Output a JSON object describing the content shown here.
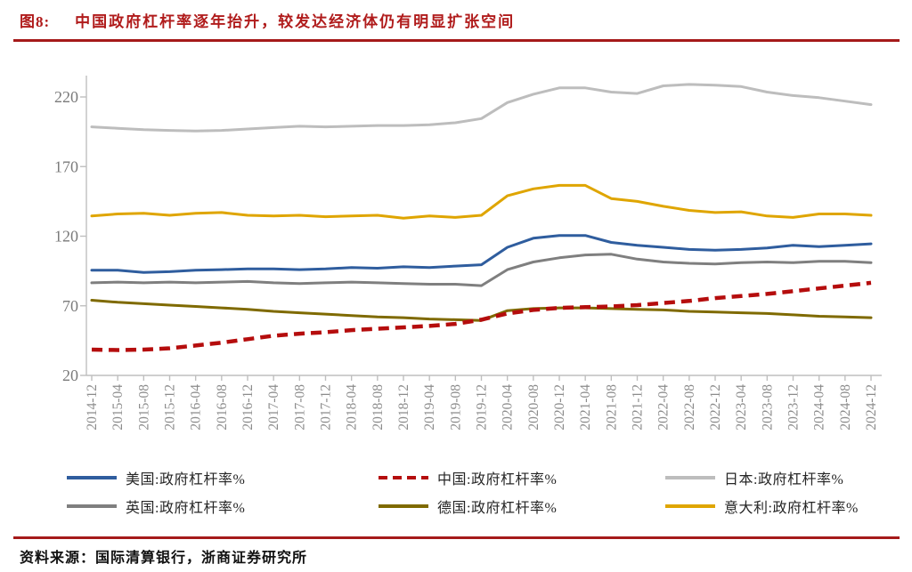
{
  "figure": {
    "label": "图8:",
    "title": "中国政府杠杆率逐年抬升，较发达经济体仍有明显扩张空间",
    "source_label": "资料来源：",
    "source": "国际清算银行，浙商证券研究所",
    "title_color": "#B01B1B",
    "rule_color": "#A51A1A"
  },
  "chart_data": {
    "type": "line",
    "title": "",
    "xlabel": "",
    "ylabel": "政府杠杆率 %",
    "ylim": [
      20,
      220
    ],
    "yticks": [
      20,
      70,
      120,
      170,
      220
    ],
    "grid": false,
    "legend_position": "bottom",
    "x": [
      "2014-12",
      "2015-04",
      "2015-08",
      "2015-12",
      "2016-04",
      "2016-08",
      "2016-12",
      "2017-04",
      "2017-08",
      "2017-12",
      "2018-04",
      "2018-08",
      "2018-12",
      "2019-04",
      "2019-08",
      "2019-12",
      "2020-04",
      "2020-08",
      "2020-12",
      "2021-04",
      "2021-08",
      "2021-12",
      "2022-04",
      "2022-08",
      "2022-12",
      "2023-04",
      "2023-08",
      "2023-12",
      "2024-04",
      "2024-08",
      "2024-12"
    ],
    "series": [
      {
        "name": "美国:政府杠杆率%",
        "color": "#2F5D9E",
        "dashed": false,
        "values": [
          95.5,
          95.5,
          94,
          94.5,
          95.5,
          96,
          96.5,
          96.5,
          96,
          96.5,
          97.5,
          97,
          98,
          97.5,
          98.5,
          99.5,
          112,
          118.5,
          120.5,
          120.5,
          115.5,
          113.5,
          112,
          110.5,
          110,
          110.5,
          111.5,
          113.5,
          112.5,
          113.5,
          114.5
        ]
      },
      {
        "name": "中国:政府杠杆率%",
        "color": "#B50D0D",
        "dashed": true,
        "values": [
          38.5,
          38.2,
          38.5,
          39.5,
          41.5,
          43.5,
          46,
          48.5,
          50,
          51,
          52.5,
          53.5,
          54.5,
          55.5,
          57,
          60,
          64.5,
          67,
          68.5,
          69,
          69.5,
          70.5,
          72,
          73.5,
          75.5,
          77,
          78.5,
          80.5,
          82.5,
          84.5,
          86.5
        ]
      },
      {
        "name": "日本:政府杠杆率%",
        "color": "#BDBDBD",
        "dashed": false,
        "values": [
          198.5,
          197.5,
          196.5,
          196,
          195.5,
          196,
          197,
          198,
          199,
          198.5,
          199,
          199.5,
          199.5,
          200,
          201.5,
          204.5,
          216,
          222,
          226.5,
          226.5,
          223.5,
          222.5,
          228,
          229,
          228.5,
          227.5,
          223.5,
          221,
          219.5,
          217,
          214.5
        ]
      },
      {
        "name": "英国:政府杠杆率%",
        "color": "#7F7F7F",
        "dashed": false,
        "values": [
          86.5,
          87,
          86.5,
          87,
          86.5,
          87,
          87.5,
          86.5,
          86,
          86.5,
          87,
          86.5,
          86,
          85.5,
          85.5,
          84.5,
          96,
          101.5,
          104.5,
          106.5,
          107,
          103.5,
          101.5,
          100.5,
          100,
          101,
          101.5,
          101,
          102,
          102,
          101
        ]
      },
      {
        "name": "德国:政府杠杆率%",
        "color": "#7F6A00",
        "dashed": false,
        "values": [
          74,
          72.5,
          71.5,
          70.5,
          69.5,
          68.5,
          67.5,
          66,
          65,
          64,
          63,
          62,
          61.5,
          60.5,
          60,
          59.5,
          66.5,
          68,
          68.5,
          68.5,
          68,
          67.5,
          67,
          66,
          65.5,
          65,
          64.5,
          63.5,
          62.5,
          62,
          61.5
        ]
      },
      {
        "name": "意大利:政府杠杆率%",
        "color": "#DFA500",
        "dashed": false,
        "values": [
          134.5,
          136,
          136.5,
          135,
          136.5,
          137,
          135,
          134.5,
          135,
          134,
          134.5,
          135,
          133,
          134.5,
          133.5,
          135,
          149,
          154,
          156.5,
          156.5,
          147,
          145,
          141.5,
          138.5,
          137,
          137.5,
          134.5,
          133.5,
          136,
          136,
          135
        ]
      }
    ],
    "axis_color": "#BFBFBF",
    "x_tick_label_color": "#8C8C8C",
    "y_tick_label_color": "#7A7A7A"
  }
}
